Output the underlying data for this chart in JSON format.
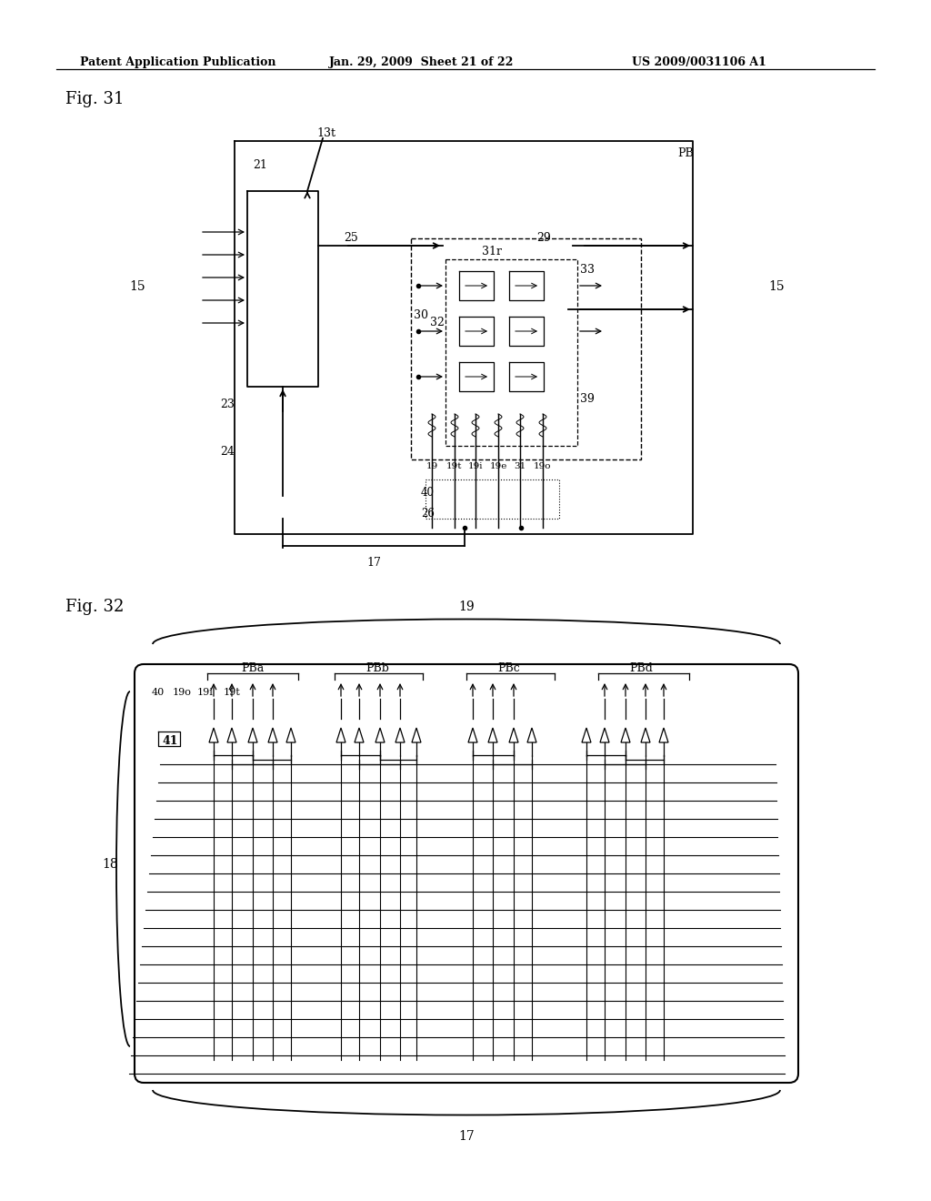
{
  "bg_color": "#ffffff",
  "header_text": "Patent Application Publication",
  "header_date": "Jan. 29, 2009  Sheet 21 of 22",
  "header_patent": "US 2009/0031106 A1",
  "fig31_label": "Fig. 31",
  "fig32_label": "Fig. 32"
}
